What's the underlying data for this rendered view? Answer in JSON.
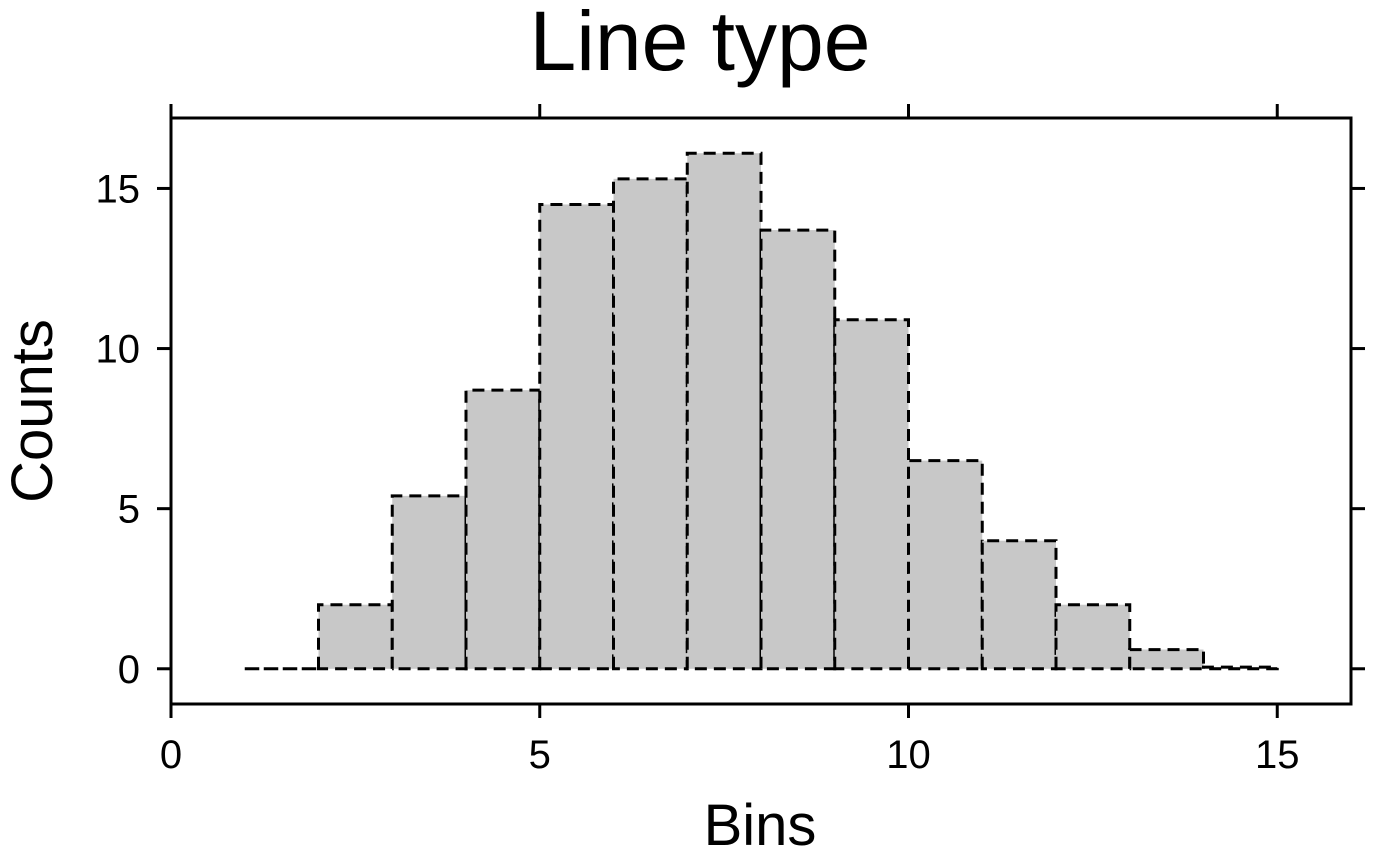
{
  "chart_data": {
    "type": "bar",
    "title": "Line type",
    "xlabel": "Bins",
    "ylabel": "Counts",
    "xlim": [
      0,
      16
    ],
    "ylim": [
      -1.1,
      17.2
    ],
    "x_ticks": [
      0,
      5,
      10,
      15
    ],
    "y_ticks": [
      0,
      5,
      10,
      15
    ],
    "bin_edges": [
      1,
      2,
      3,
      4,
      5,
      6,
      7,
      8,
      9,
      10,
      11,
      12,
      13,
      14,
      15
    ],
    "values": [
      0,
      2,
      5.4,
      8.7,
      14.5,
      15.3,
      16.1,
      13.7,
      10.9,
      6.5,
      4,
      2,
      0.6,
      0.05
    ],
    "bar_fill": "#c8c8c8",
    "bar_outline": "#000000",
    "line_style": "dashed",
    "grid": false
  }
}
